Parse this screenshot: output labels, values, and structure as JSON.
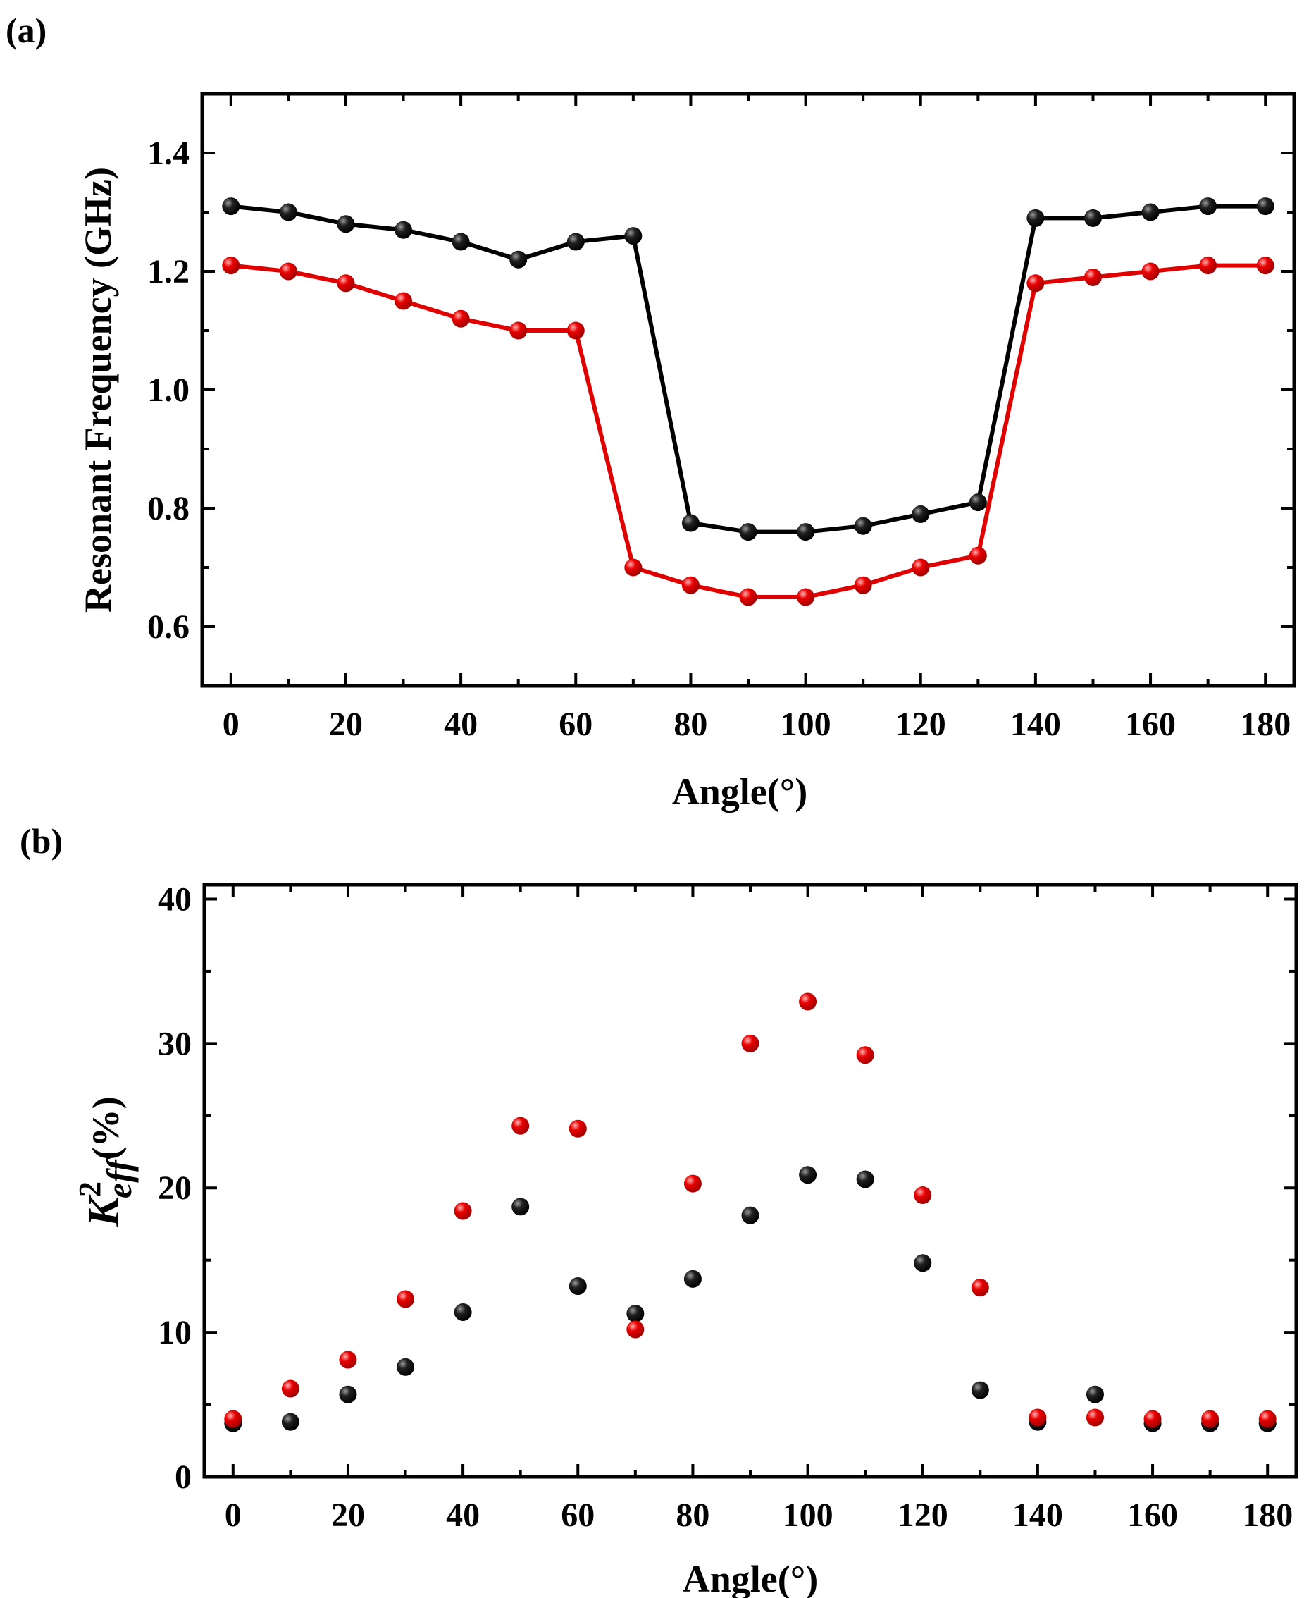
{
  "chart_data": [
    {
      "panel_label": "(a)",
      "type": "line",
      "xlabel": "Angle(°)",
      "ylabel": "Resonant Frequency (GHz)",
      "xlim": [
        -5,
        185
      ],
      "ylim": [
        0.5,
        1.5
      ],
      "xticks": [
        0,
        20,
        40,
        60,
        80,
        100,
        120,
        140,
        160,
        180
      ],
      "yticks": [
        0.6,
        0.8,
        1.0,
        1.2,
        1.4
      ],
      "ytick_labels": [
        "0.6",
        "0.8",
        "1.0",
        "1.2",
        "1.4"
      ],
      "x": [
        0,
        10,
        20,
        30,
        40,
        50,
        60,
        70,
        80,
        90,
        100,
        110,
        120,
        130,
        140,
        150,
        160,
        170,
        180
      ],
      "series": [
        {
          "color": "#000000",
          "values": [
            1.31,
            1.3,
            1.28,
            1.27,
            1.25,
            1.22,
            1.25,
            1.26,
            0.775,
            0.76,
            0.76,
            0.77,
            0.79,
            0.81,
            1.29,
            1.29,
            1.3,
            1.31,
            1.31
          ]
        },
        {
          "color": "#e00000",
          "values": [
            1.21,
            1.2,
            1.18,
            1.15,
            1.12,
            1.1,
            1.1,
            0.7,
            0.67,
            0.65,
            0.65,
            0.67,
            0.7,
            0.72,
            1.18,
            1.19,
            1.2,
            1.21,
            1.21
          ]
        }
      ]
    },
    {
      "panel_label": "(b)",
      "type": "scatter",
      "xlabel": "Angle(°)",
      "ylabel_main": "K",
      "ylabel_sup": "2",
      "ylabel_sub": "eff",
      "ylabel_unit": "(%)",
      "xlim": [
        -5,
        185
      ],
      "ylim": [
        0,
        41
      ],
      "xticks": [
        0,
        20,
        40,
        60,
        80,
        100,
        120,
        140,
        160,
        180
      ],
      "yticks": [
        0,
        10,
        20,
        30,
        40
      ],
      "ytick_labels": [
        "0",
        "10",
        "20",
        "30",
        "40"
      ],
      "x": [
        0,
        10,
        20,
        30,
        40,
        50,
        60,
        70,
        80,
        90,
        100,
        110,
        120,
        130,
        140,
        150,
        160,
        170,
        180
      ],
      "series": [
        {
          "color": "#000000",
          "values": [
            3.7,
            3.8,
            5.7,
            7.6,
            11.4,
            18.7,
            13.2,
            11.3,
            13.7,
            18.1,
            20.9,
            20.6,
            14.8,
            6.0,
            3.8,
            5.7,
            3.7,
            3.7,
            3.7
          ]
        },
        {
          "color": "#e00000",
          "values": [
            4.0,
            6.1,
            8.1,
            12.3,
            18.4,
            24.3,
            24.1,
            10.2,
            20.3,
            30.0,
            32.9,
            29.2,
            19.5,
            13.1,
            4.1,
            4.1,
            4.0,
            4.0,
            4.0
          ]
        }
      ]
    }
  ]
}
